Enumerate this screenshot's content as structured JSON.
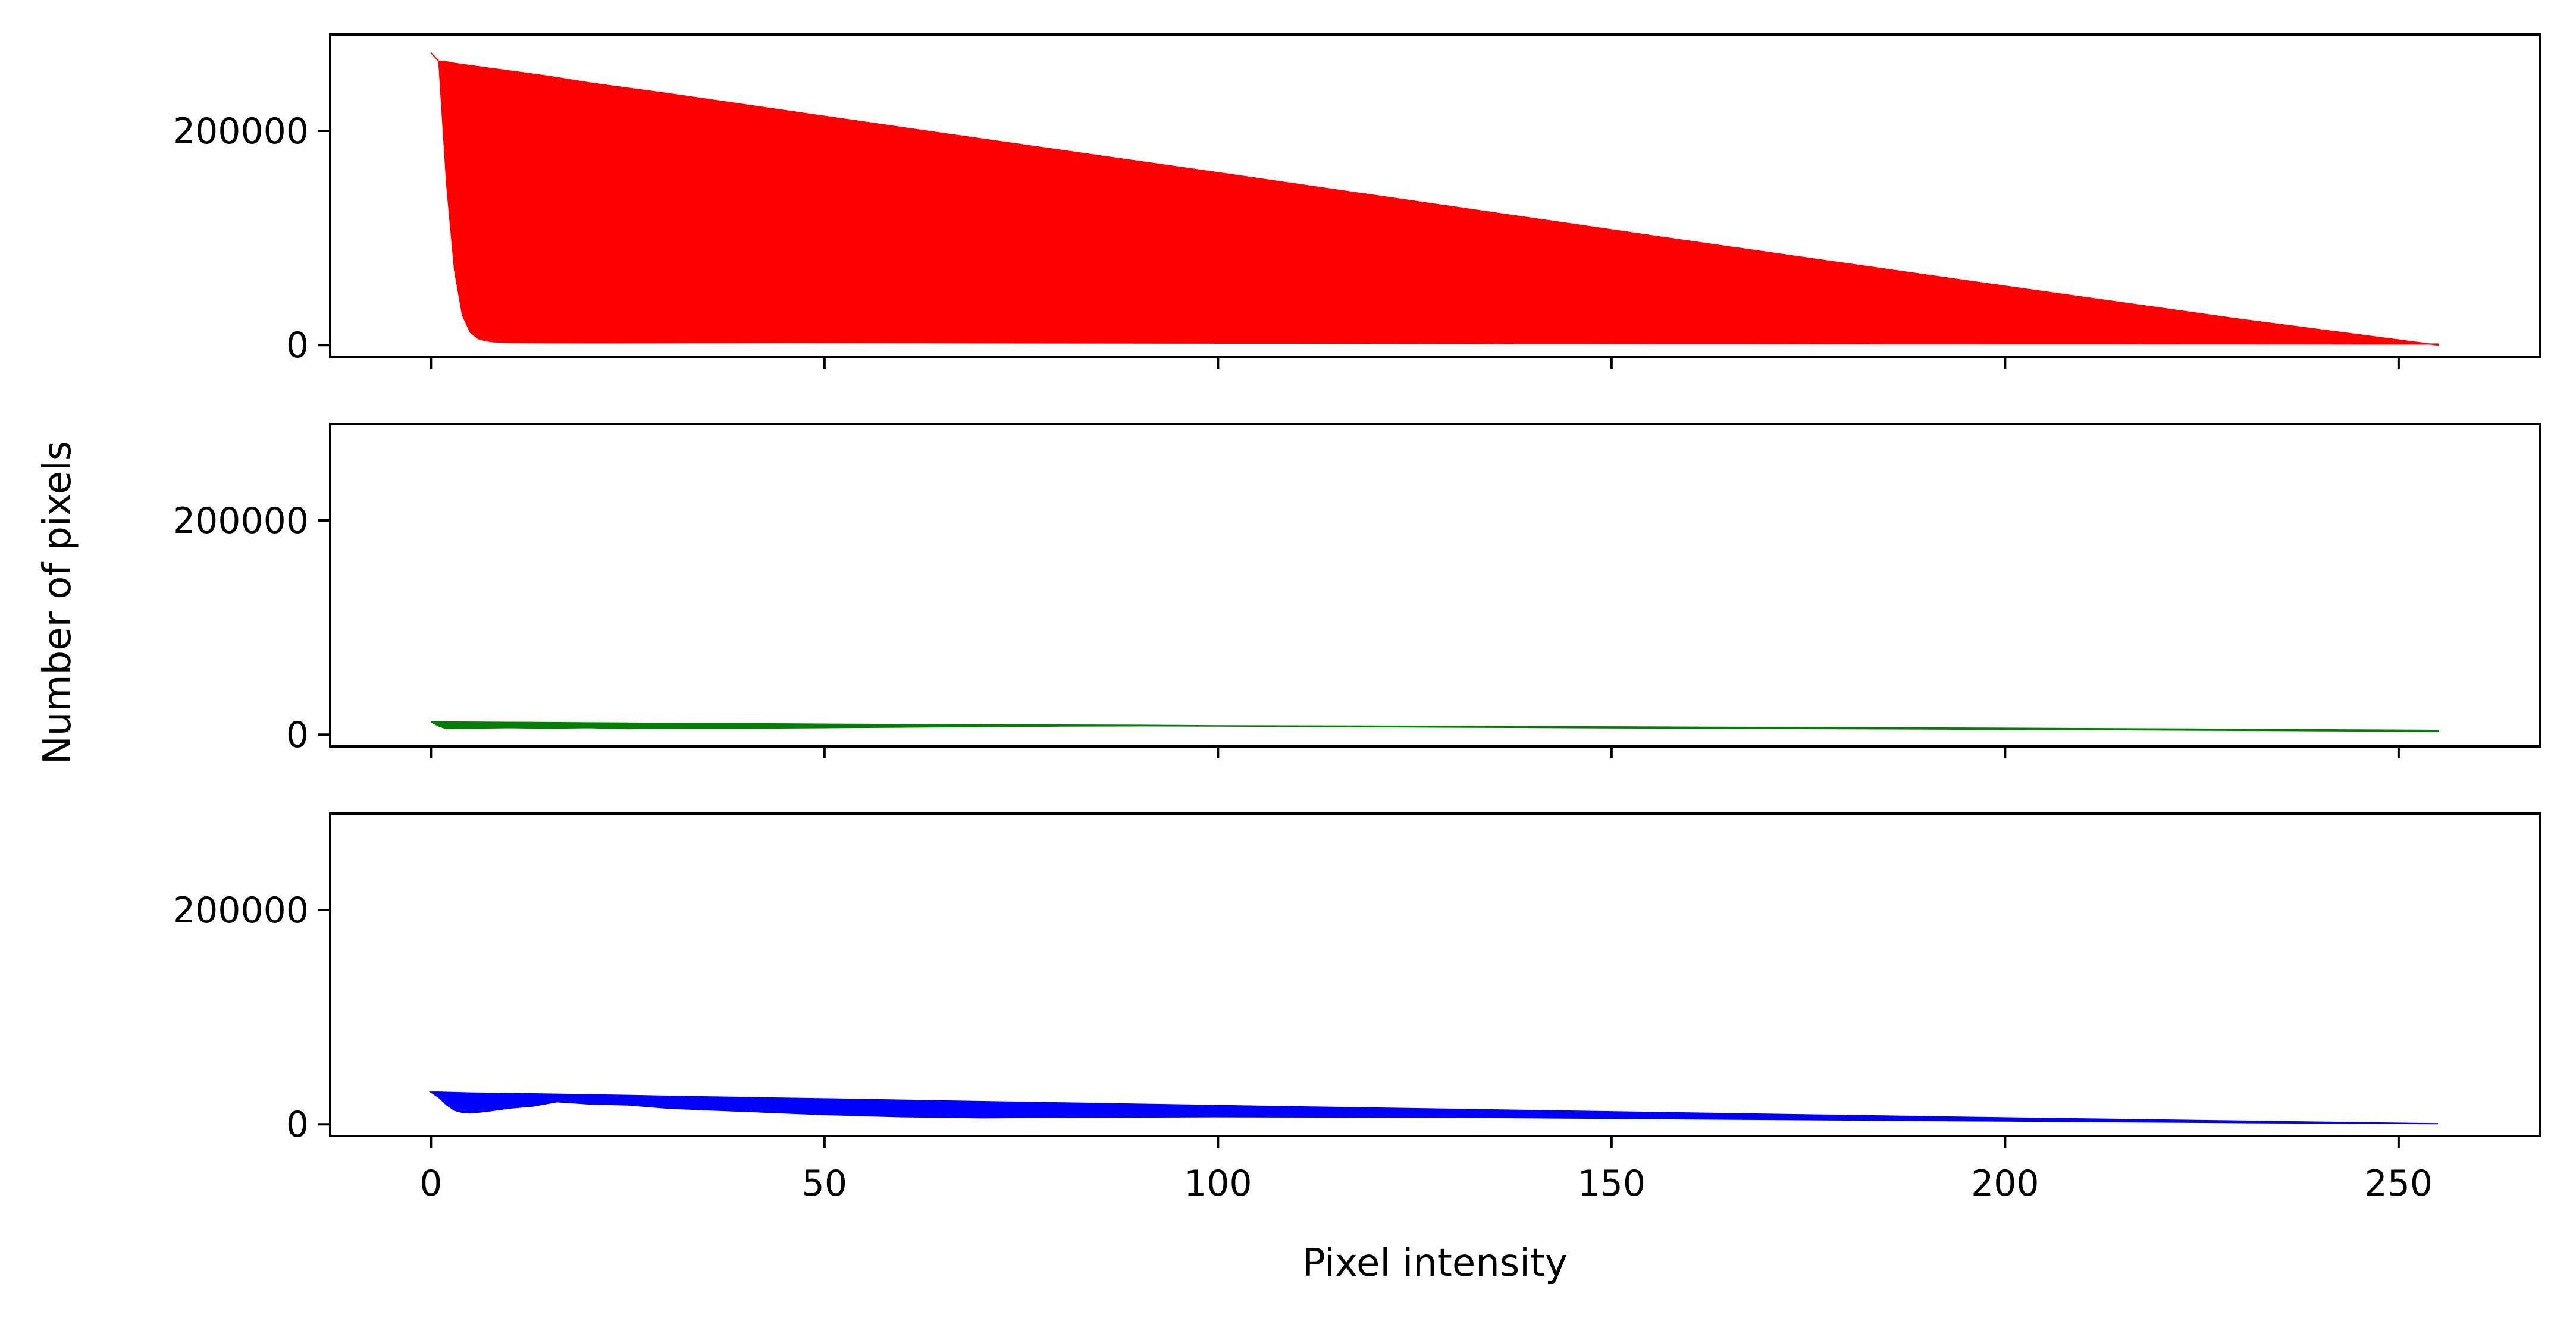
{
  "chart_data": {
    "type": "area",
    "xlabel": "Pixel intensity",
    "ylabel": "Number of pixels",
    "xlim": [
      -12.8,
      268
    ],
    "ylim": [
      -11000,
      290000
    ],
    "x_ticks": [
      0,
      50,
      100,
      150,
      200,
      250
    ],
    "x_tick_labels": [
      "0",
      "50",
      "100",
      "150",
      "200",
      "250"
    ],
    "y_ticks": [
      0,
      200000
    ],
    "y_tick_labels": [
      "0",
      "200000"
    ],
    "grid": false,
    "panels": [
      {
        "name": "",
        "color": "#ff0000",
        "x": [
          0,
          1,
          2,
          3,
          4,
          5,
          6,
          7,
          8,
          10,
          15,
          20,
          30,
          45,
          60,
          80,
          100,
          130,
          160,
          200,
          230,
          255
        ],
        "y": [
          273000,
          265000,
          150000,
          70000,
          28000,
          12000,
          6000,
          4000,
          3000,
          2500,
          2200,
          2100,
          2200,
          2500,
          2300,
          2000,
          1800,
          1600,
          1500,
          1300,
          1200,
          1000
        ],
        "y_upper": [
          273000,
          265000,
          264500,
          263000,
          262000,
          261000,
          260000,
          259000,
          258000,
          256000,
          251000,
          245000,
          235000,
          219000,
          203000,
          182000,
          161000,
          129000,
          97000,
          55000,
          24000,
          0
        ]
      },
      {
        "name": "",
        "color": "#008000",
        "x": [
          0,
          1,
          2,
          5,
          10,
          15,
          20,
          25,
          30,
          40,
          50,
          60,
          70,
          80,
          90,
          100,
          130,
          160,
          200,
          230,
          255
        ],
        "y": [
          12000,
          8000,
          5500,
          6000,
          6500,
          6000,
          6500,
          5500,
          6000,
          6000,
          6500,
          7000,
          7500,
          8000,
          8200,
          8000,
          7000,
          6000,
          5000,
          4000,
          3000
        ],
        "y_upper": [
          12000,
          12000,
          11800,
          11700,
          11500,
          11300,
          11000,
          10800,
          10500,
          10200,
          9800,
          9500,
          9200,
          9000,
          8800,
          8300,
          7800,
          7000,
          6000,
          5000,
          4000
        ]
      },
      {
        "name": "",
        "color": "#0000ff",
        "x": [
          0,
          1,
          2,
          3,
          4,
          5,
          7,
          10,
          13,
          16,
          18,
          20,
          25,
          30,
          40,
          50,
          60,
          70,
          80,
          100,
          130,
          160,
          200,
          230,
          255
        ],
        "y": [
          30000,
          25000,
          18000,
          13000,
          11000,
          10500,
          12000,
          15000,
          17000,
          21000,
          20000,
          19000,
          18000,
          15000,
          12000,
          9000,
          7000,
          6000,
          6500,
          7000,
          6500,
          5000,
          3000,
          1500,
          500
        ],
        "y_upper": [
          30000,
          30000,
          29800,
          29600,
          29400,
          29200,
          29000,
          28700,
          28400,
          28100,
          27800,
          27500,
          27000,
          26200,
          25000,
          23800,
          22500,
          21200,
          20000,
          17500,
          14000,
          10500,
          6000,
          3000,
          500
        ]
      }
    ]
  }
}
